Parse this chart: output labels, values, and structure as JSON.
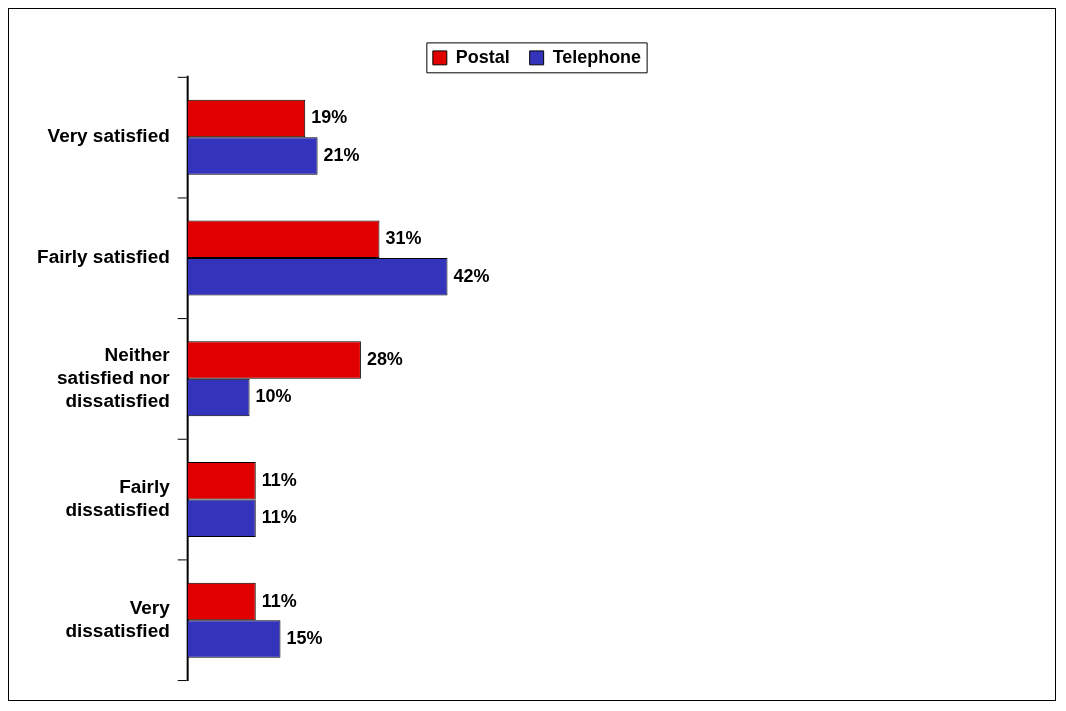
{
  "chart_data": {
    "type": "bar",
    "orientation": "horizontal",
    "legend": "top",
    "categories": [
      "Very satisfied",
      "Fairly satisfied",
      "Neither satisfied nor dissatisfied",
      "Fairly dissatisfied",
      "Very dissatisfied"
    ],
    "series": [
      {
        "name": "Postal",
        "color": "#e00000",
        "values": [
          19,
          31,
          28,
          11,
          11
        ],
        "value_labels": [
          "19%",
          "31%",
          "28%",
          "11%",
          "11%"
        ]
      },
      {
        "name": "Telephone",
        "color": "#3333bb",
        "values": [
          21,
          42,
          10,
          11,
          15
        ],
        "value_labels": [
          "21%",
          "42%",
          "10%",
          "11%",
          "15%"
        ]
      }
    ]
  }
}
